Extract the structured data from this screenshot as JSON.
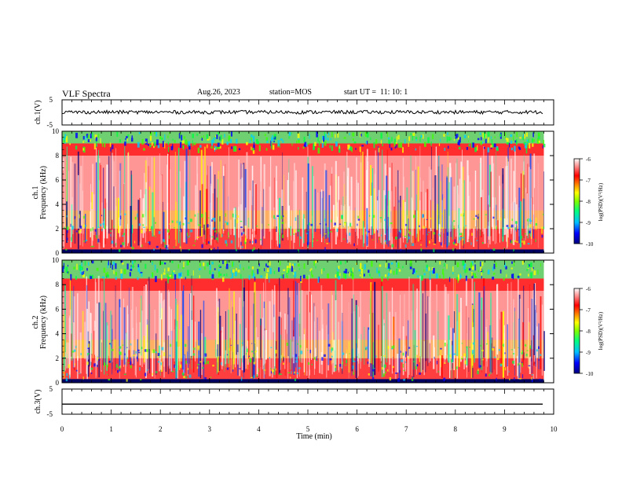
{
  "header": {
    "title": "VLF Spectra",
    "date": "Aug.26, 2023",
    "station_label": "station=",
    "station": "MOS",
    "start_label": "start  UT =",
    "start_time": "11: 10: 1"
  },
  "colors": {
    "colormap": [
      "#000080",
      "#0000ff",
      "#0080ff",
      "#00e0ff",
      "#00ff80",
      "#40ff00",
      "#c0ff00",
      "#ffff00",
      "#ffb000",
      "#ff5000",
      "#ff0000",
      "#ffd8d8",
      "#ffffff"
    ],
    "trace": "#000000"
  },
  "chart_data": [
    {
      "type": "line",
      "ylabel": "ch.1(V)",
      "ylim": [
        -5,
        5
      ],
      "yticks": [
        "5",
        "-5"
      ],
      "trace_level": 0.1,
      "grid": false
    },
    {
      "type": "heatmap",
      "ylabel": "ch.1",
      "ylabel2": "Frequency  (kHz)",
      "ylim": [
        0,
        10
      ],
      "yticks": [
        "0",
        "2",
        "4",
        "6",
        "8",
        "10"
      ],
      "xlim": [
        0,
        10
      ],
      "data_end_min": 9.8,
      "colorbar": {
        "label": "log(PSD)(V²/Hz)",
        "range": [
          -10,
          -6
        ],
        "ticks": [
          "-6",
          "-7",
          "-8",
          "-9",
          "-10"
        ]
      },
      "bands_khz": [
        [
          0.3,
          2.0
        ],
        [
          2.0,
          3.5
        ],
        [
          8.0,
          9.0
        ],
        [
          9.0,
          10.0
        ]
      ]
    },
    {
      "type": "heatmap",
      "ylabel": "ch.2",
      "ylabel2": "Frequency  (kHz)",
      "ylim": [
        0,
        10
      ],
      "yticks": [
        "0",
        "2",
        "4",
        "6",
        "8",
        "10"
      ],
      "xlim": [
        0,
        10
      ],
      "data_end_min": 9.8,
      "colorbar": {
        "label": "log(PSD)(V²/Hz)",
        "range": [
          -10,
          -6
        ],
        "ticks": [
          "-6",
          "-7",
          "-8",
          "-9",
          "-10"
        ]
      },
      "bands_khz": [
        [
          0.3,
          2.0
        ],
        [
          2.0,
          3.5
        ],
        [
          7.5,
          8.5
        ],
        [
          8.5,
          10.0
        ]
      ]
    },
    {
      "type": "line",
      "ylabel": "ch.3(V)",
      "ylim": [
        -5,
        5
      ],
      "yticks": [
        "5",
        "-5"
      ],
      "trace_level": -1.0,
      "grid": false
    }
  ],
  "xaxis": {
    "label": "Time  (min)",
    "range": [
      0,
      10
    ],
    "ticks": [
      "0",
      "1",
      "2",
      "3",
      "4",
      "5",
      "6",
      "7",
      "8",
      "9",
      "10"
    ]
  }
}
